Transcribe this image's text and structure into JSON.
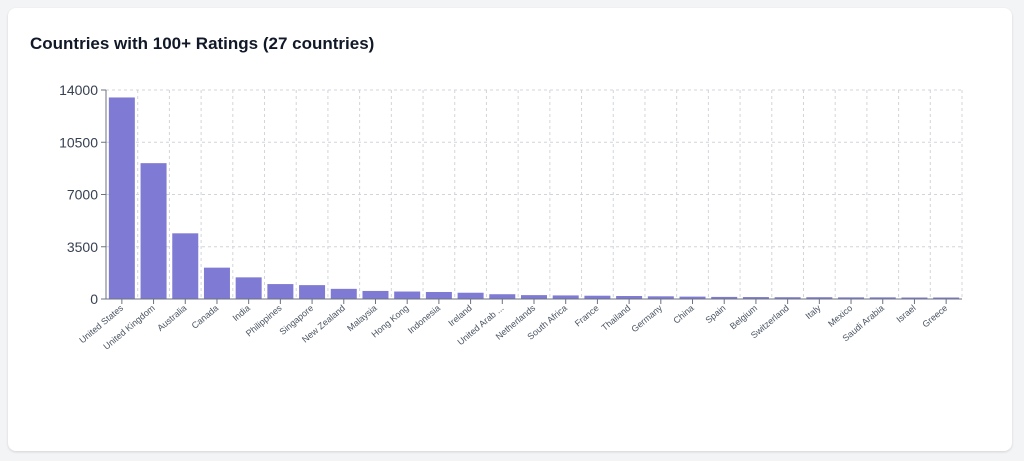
{
  "card": {
    "title": "Countries with 100+ Ratings (27 countries)"
  },
  "colors": {
    "bar": "#7f7ad3",
    "grid": "#d1d5db",
    "axis": "#6b7280",
    "tick_text": "#374151",
    "label_text": "#4b5563"
  },
  "chart_data": {
    "type": "bar",
    "title": "Countries with 100+ Ratings (27 countries)",
    "xlabel": "",
    "ylabel": "",
    "ylim": [
      0,
      14000
    ],
    "yticks": [
      0,
      3500,
      7000,
      10500,
      14000
    ],
    "grid": true,
    "categories": [
      "United States",
      "United Kingdom",
      "Australia",
      "Canada",
      "India",
      "Philippines",
      "Singapore",
      "New Zealand",
      "Malaysia",
      "Hong Kong",
      "Indonesia",
      "Ireland",
      "United Arab ...",
      "Netherlands",
      "South Africa",
      "France",
      "Thailand",
      "Germany",
      "China",
      "Spain",
      "Belgium",
      "Switzerland",
      "Italy",
      "Mexico",
      "Saudi Arabia",
      "Israel",
      "Greece"
    ],
    "values": [
      13500,
      9100,
      4400,
      2100,
      1450,
      1000,
      930,
      680,
      540,
      500,
      470,
      420,
      320,
      260,
      240,
      220,
      200,
      180,
      160,
      140,
      130,
      120,
      120,
      110,
      110,
      100,
      100
    ]
  }
}
